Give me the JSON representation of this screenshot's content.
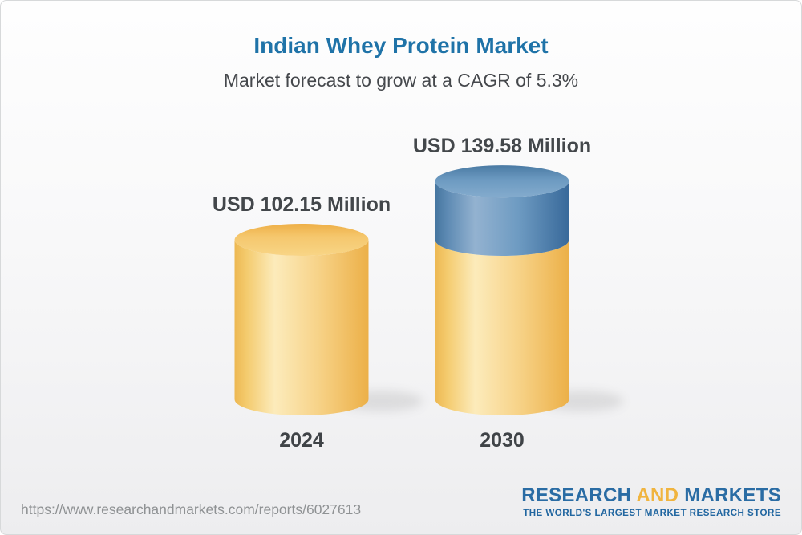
{
  "header": {
    "title": "Indian Whey Protein Market",
    "subtitle": "Market forecast to grow at a CAGR of 5.3%"
  },
  "chart": {
    "bars": [
      {
        "year": "2024",
        "value_label": "USD 102.15 Million"
      },
      {
        "year": "2030",
        "value_label": "USD 139.58 Million"
      }
    ]
  },
  "chart_data": {
    "type": "bar",
    "subtype": "3d-cylinder-stacked",
    "categories": [
      "2024",
      "2030"
    ],
    "values": [
      102.15,
      139.58
    ],
    "series": [
      {
        "name": "base",
        "values": [
          102.15,
          102.15
        ],
        "color": "#f6cb72"
      },
      {
        "name": "forecast-growth",
        "values": [
          0,
          37.43
        ],
        "color": "#6c9ac1"
      }
    ],
    "title": "Indian Whey Protein Market",
    "subtitle": "Market forecast to grow at a CAGR of 5.3%",
    "unit": "USD Million",
    "cagr": "5.3%",
    "xlabel": "",
    "ylabel": "",
    "grid": false,
    "legend": false,
    "data_labels": [
      "USD 102.15 Million",
      "USD 139.58 Million"
    ]
  },
  "footer": {
    "url": "https://www.researchandmarkets.com/reports/6027613",
    "logo": {
      "part1": "RESEARCH",
      "part2": "AND",
      "part3": "MARKETS",
      "tagline": "THE WORLD'S LARGEST MARKET RESEARCH STORE"
    }
  },
  "colors": {
    "title_blue": "#1f73a8",
    "subtitle_gray": "#45484c",
    "label_dark": "#43474b",
    "bar_yellow": "#f6cb72",
    "bar_yellow_edge": "#edb24d",
    "bar_blue": "#6c9ac1",
    "bar_blue_edge": "#3e6f9d",
    "logo_blue": "#2a6ca4",
    "logo_gold": "#f0b43f",
    "url_gray": "#8f9294",
    "background_bottom": "#ededef"
  }
}
